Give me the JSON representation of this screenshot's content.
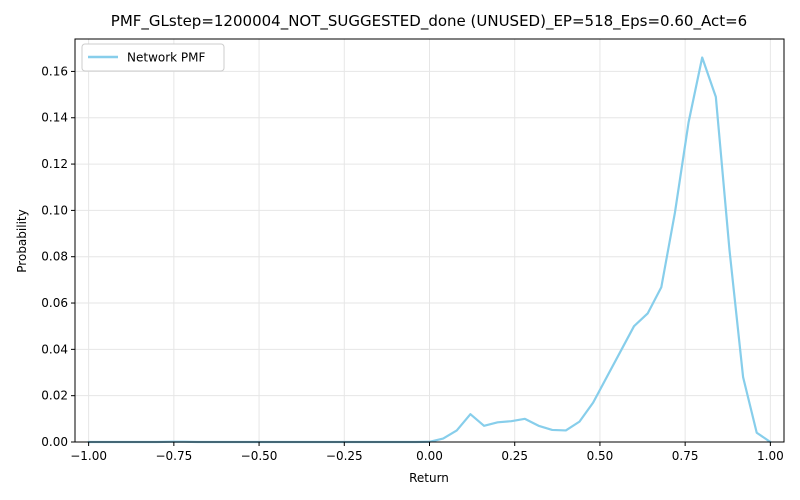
{
  "chart_data": {
    "type": "line",
    "title": "PMF_GLstep=1200004_NOT_SUGGESTED_done (UNUSED)_EP=518_Eps=0.60_Act=6",
    "xlabel": "Return",
    "ylabel": "Probability",
    "xlim": [
      -1.04,
      1.04
    ],
    "ylim": [
      0,
      0.174
    ],
    "grid": true,
    "legend_position": "upper-left",
    "xticks": [
      -1.0,
      -0.75,
      -0.5,
      -0.25,
      0.0,
      0.25,
      0.5,
      0.75,
      1.0
    ],
    "xtick_labels": [
      "−1.00",
      "−0.75",
      "−0.50",
      "−0.25",
      "0.00",
      "0.25",
      "0.50",
      "0.75",
      "1.00"
    ],
    "yticks": [
      0.0,
      0.02,
      0.04,
      0.06,
      0.08,
      0.1,
      0.12,
      0.14,
      0.16
    ],
    "ytick_labels": [
      "0.00",
      "0.02",
      "0.04",
      "0.06",
      "0.08",
      "0.10",
      "0.12",
      "0.14",
      "0.16"
    ],
    "series": [
      {
        "name": "Network PMF",
        "color": "#87ceeb",
        "x": [
          -1.0,
          -0.96,
          -0.92,
          -0.88,
          -0.84,
          -0.8,
          -0.76,
          -0.72,
          -0.68,
          -0.64,
          -0.6,
          -0.56,
          -0.52,
          -0.48,
          -0.44,
          -0.4,
          -0.36,
          -0.32,
          -0.28,
          -0.24,
          -0.2,
          -0.16,
          -0.12,
          -0.08,
          -0.04,
          0.0,
          0.04,
          0.08,
          0.12,
          0.16,
          0.2,
          0.24,
          0.28,
          0.32,
          0.36,
          0.4,
          0.44,
          0.48,
          0.52,
          0.56,
          0.6,
          0.64,
          0.68,
          0.72,
          0.76,
          0.8,
          0.84,
          0.88,
          0.92,
          0.96,
          1.0
        ],
        "y": [
          0.0,
          0.0,
          0.0,
          0.0,
          0.0,
          0.0,
          0.0001,
          0.0001,
          0.0,
          0.0,
          0.0,
          0.0,
          0.0,
          0.0,
          0.0,
          0.0,
          0.0,
          0.0,
          0.0,
          0.0,
          0.0,
          0.0,
          0.0,
          0.0,
          0.0,
          0.0001,
          0.0015,
          0.005,
          0.012,
          0.007,
          0.0085,
          0.009,
          0.01,
          0.007,
          0.0052,
          0.005,
          0.0088,
          0.017,
          0.028,
          0.039,
          0.05,
          0.0555,
          0.0668,
          0.099,
          0.138,
          0.166,
          0.149,
          0.083,
          0.028,
          0.004,
          0.0
        ]
      }
    ]
  }
}
